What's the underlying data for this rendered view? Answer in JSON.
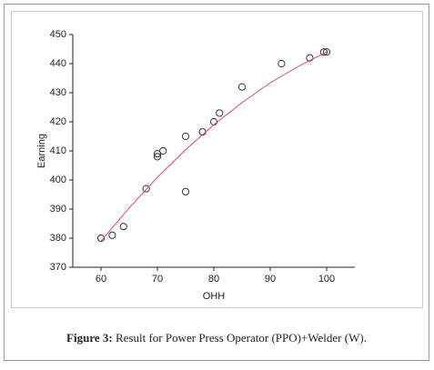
{
  "chart_data": {
    "type": "scatter",
    "xlabel": "OHH",
    "ylabel": "Earning",
    "xlim": [
      55,
      105
    ],
    "xticks": [
      60,
      70,
      80,
      90,
      100
    ],
    "ylim": [
      370,
      450
    ],
    "yticks": [
      370,
      380,
      390,
      400,
      410,
      420,
      430,
      440,
      450
    ],
    "series": [
      {
        "kind": "points",
        "color": "#333333",
        "x": [
          60,
          62,
          64,
          68,
          70,
          70,
          71,
          75,
          75,
          78,
          80,
          81,
          85,
          92,
          97,
          99.5,
          100
        ],
        "values": [
          380,
          381,
          384,
          397,
          408,
          409,
          410,
          415,
          396,
          416.5,
          420,
          423,
          432,
          440,
          442,
          444,
          444
        ]
      },
      {
        "kind": "line",
        "color": "#e0485a",
        "x": [
          60,
          65,
          70,
          75,
          80,
          85,
          90,
          95,
          100
        ],
        "values": [
          379,
          390.4,
          400.9,
          410.4,
          419,
          426.6,
          433.4,
          439.1,
          444
        ]
      }
    ]
  },
  "caption": {
    "label": "Figure 3:",
    "text": "Result for Power Press Operator (PPO)+Welder (W)."
  }
}
